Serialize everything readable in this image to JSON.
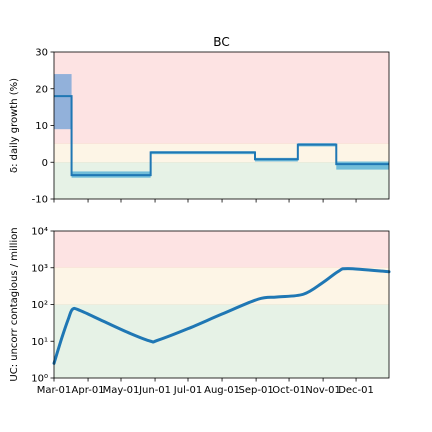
{
  "chart_data": [
    {
      "type": "line",
      "title": "BC",
      "ylabel": "δ: daily growth (%)",
      "ylim": [
        -10,
        30
      ],
      "yticks": [
        -10,
        0,
        10,
        20,
        30
      ],
      "x_tick_labels": [
        "Mar-01",
        "Apr-01",
        "May-01",
        "Jun-01",
        "Jul-01",
        "Aug-01",
        "Sep-01",
        "Oct-01",
        "Nov-01",
        "Dec-01"
      ],
      "xlim": [
        "2020-03-01",
        "2020-12-31"
      ],
      "background_bands": [
        {
          "from": 5,
          "to": 30,
          "color": "#fde3e3"
        },
        {
          "from": 0,
          "to": 5,
          "color": "#fdf5e6"
        },
        {
          "from": -10,
          "to": 0,
          "color": "#e6f2e6"
        }
      ],
      "series": [
        {
          "color": "#1f77b4",
          "segments": [
            {
              "start": "2020-03-01",
              "end": "2020-03-17",
              "value": 18,
              "band": [
                9,
                24
              ]
            },
            {
              "start": "2020-03-17",
              "end": "2020-05-28",
              "value": -3.5,
              "band": [
                -4.2,
                -2.5
              ]
            },
            {
              "start": "2020-05-28",
              "end": "2020-08-31",
              "value": 2.7,
              "band": [
                2.2,
                3.0
              ]
            },
            {
              "start": "2020-08-31",
              "end": "2020-10-09",
              "value": 0.8,
              "band": [
                0.2,
                1.2
              ]
            },
            {
              "start": "2020-10-09",
              "end": "2020-11-13",
              "value": 4.8,
              "band": [
                4.3,
                5.2
              ]
            },
            {
              "start": "2020-11-13",
              "end": "2020-12-31",
              "value": -0.5,
              "band": [
                -2.0,
                0.2
              ]
            }
          ]
        }
      ]
    },
    {
      "type": "line",
      "ylabel": "UC: uncorr contagious / million",
      "yscale": "log",
      "ylim": [
        1,
        10000
      ],
      "yticks": [
        1,
        10,
        100,
        1000,
        10000
      ],
      "y_tick_labels": [
        "10⁰",
        "10¹",
        "10²",
        "10³",
        "10⁴"
      ],
      "x_tick_labels": [
        "Mar-01",
        "Apr-01",
        "May-01",
        "Jun-01",
        "Jul-01",
        "Aug-01",
        "Sep-01",
        "Oct-01",
        "Nov-01",
        "Dec-01"
      ],
      "xlim": [
        "2020-03-01",
        "2020-12-31"
      ],
      "background_bands": [
        {
          "from": 1000,
          "to": 10000,
          "color": "#fde3e3"
        },
        {
          "from": 100,
          "to": 1000,
          "color": "#fdf5e6"
        },
        {
          "from": 1,
          "to": 100,
          "color": "#e6f2e6"
        }
      ],
      "series": [
        {
          "color": "#1f77b4",
          "x": [
            "2020-03-01",
            "2020-03-08",
            "2020-03-14",
            "2020-03-18",
            "2020-03-25",
            "2020-04-15",
            "2020-05-10",
            "2020-05-28",
            "2020-06-03",
            "2020-07-01",
            "2020-08-01",
            "2020-09-03",
            "2020-09-20",
            "2020-10-14",
            "2020-11-01",
            "2020-11-15",
            "2020-11-24",
            "2020-12-31"
          ],
          "y": [
            2.5,
            12,
            40,
            75,
            68,
            35,
            16,
            10,
            10.5,
            22,
            55,
            140,
            160,
            190,
            400,
            800,
            950,
            780
          ]
        }
      ]
    }
  ]
}
